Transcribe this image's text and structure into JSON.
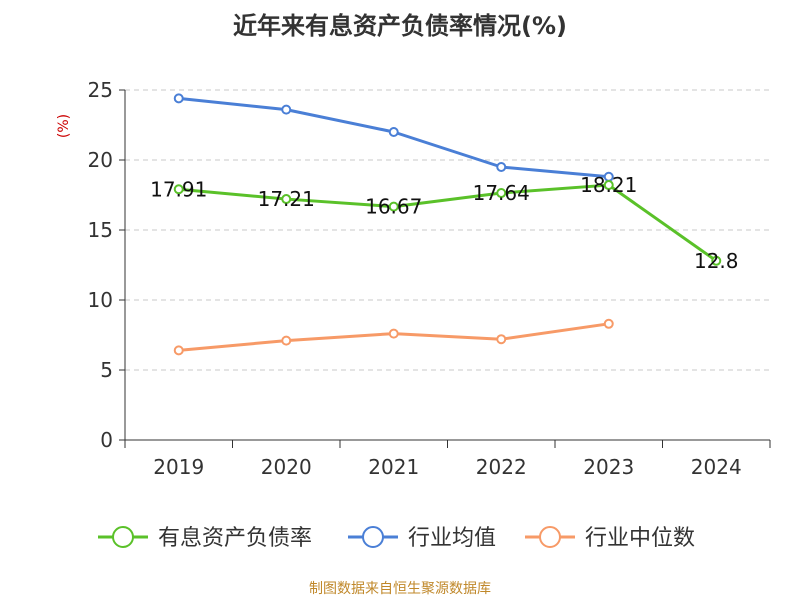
{
  "chart_data": {
    "type": "line",
    "title": "近年来有息资产负债率情况(%)",
    "ylabel": "(%)",
    "categories": [
      "2019",
      "2020",
      "2021",
      "2022",
      "2023",
      "2024"
    ],
    "yticks": [
      "0",
      "5",
      "10",
      "15",
      "20",
      "25"
    ],
    "ylim": [
      0,
      25
    ],
    "grid": "dashed horizontal",
    "legend_position": "bottom",
    "series": [
      {
        "name": "有息资产负债率",
        "color": "#5ac129",
        "values": [
          17.91,
          17.21,
          16.67,
          17.64,
          18.21,
          12.8
        ],
        "labels": [
          "17.91",
          "17.21",
          "16.67",
          "17.64",
          "18.21",
          "12.8"
        ]
      },
      {
        "name": "行业均值",
        "color": "#4a7fd6",
        "values": [
          24.4,
          23.6,
          22.0,
          19.5,
          18.8,
          null
        ]
      },
      {
        "name": "行业中位数",
        "color": "#f79a67",
        "values": [
          6.4,
          7.1,
          7.6,
          7.2,
          8.3,
          null
        ]
      }
    ]
  },
  "source": "制图数据来自恒生聚源数据库"
}
